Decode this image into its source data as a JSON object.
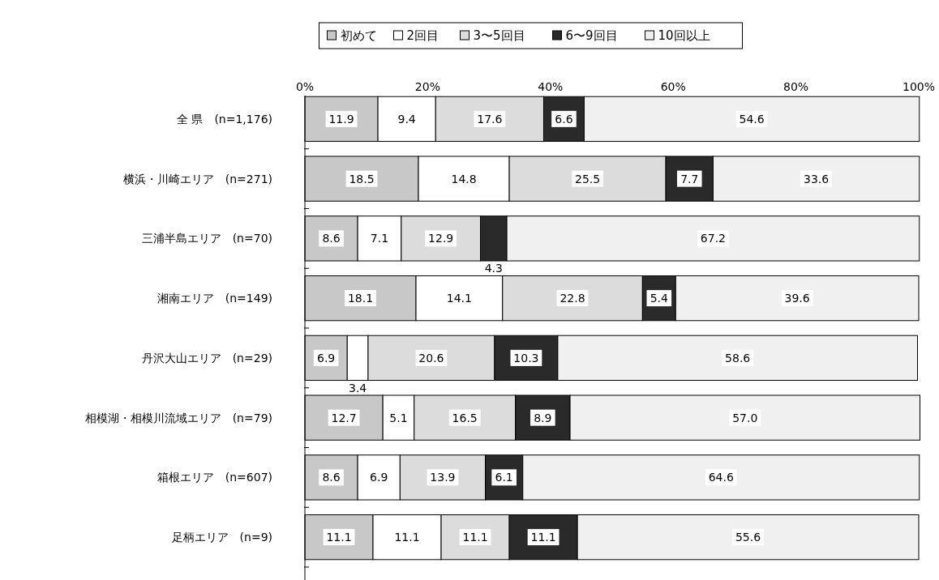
{
  "chart_data": {
    "type": "bar",
    "orientation": "horizontal",
    "stacked": true,
    "legend": "top",
    "categories": [
      "全 県　(n=1,176)",
      "横浜・川崎エリア　(n=271)",
      "三浦半島エリア　(n=70)",
      "湘南エリア　(n=149)",
      "丹沢大山エリア　(n=29)",
      "相模湖・相模川流域エリア　(n=79)",
      "箱根エリア　(n=607)",
      "足柄エリア　(n=9)"
    ],
    "xlim": [
      0,
      100
    ],
    "xticks": [
      {
        "value": 0,
        "label": "0%"
      },
      {
        "value": 20,
        "label": "20%"
      },
      {
        "value": 40,
        "label": "40%"
      },
      {
        "value": 60,
        "label": "60%"
      },
      {
        "value": 80,
        "label": "80%"
      },
      {
        "value": 100,
        "label": "100%"
      }
    ],
    "series": [
      {
        "name": "初めて",
        "color": "#c8c8c8",
        "values": [
          11.9,
          18.5,
          8.6,
          18.1,
          6.9,
          12.7,
          8.6,
          11.1
        ],
        "value_labels": [
          "11.9",
          "18.5",
          "8.6",
          "18.1",
          "6.9",
          "12.7",
          "8.6",
          "11.1"
        ]
      },
      {
        "name": "2回目",
        "color": "#ffffff",
        "values": [
          9.4,
          14.8,
          7.1,
          14.1,
          3.4,
          5.1,
          6.9,
          11.1
        ],
        "value_labels": [
          "9.4",
          "14.8",
          "7.1",
          "14.1",
          "3.4",
          "5.1",
          "6.9",
          "11.1"
        ]
      },
      {
        "name": "3〜5回目",
        "color": "#dcdcdc",
        "values": [
          17.6,
          25.5,
          12.9,
          22.8,
          20.6,
          16.5,
          13.9,
          11.1
        ],
        "value_labels": [
          "17.6",
          "25.5",
          "12.9",
          "22.8",
          "20.6",
          "16.5",
          "13.9",
          "11.1"
        ]
      },
      {
        "name": "6〜9回目",
        "color": "#2a2a2a",
        "values": [
          6.6,
          7.7,
          4.3,
          5.4,
          10.3,
          8.9,
          6.1,
          11.1
        ],
        "value_labels": [
          "6.6",
          "7.7",
          "4.3",
          "5.4",
          "10.3",
          "8.9",
          "6.1",
          "11.1"
        ]
      },
      {
        "name": "10回以上",
        "color": "#f0f0f0",
        "values": [
          54.6,
          33.6,
          67.2,
          39.6,
          58.6,
          57.0,
          64.6,
          55.6
        ],
        "value_labels": [
          "54.6",
          "33.6",
          "67.2",
          "39.6",
          "58.6",
          "57.0",
          "64.6",
          "55.6"
        ]
      }
    ]
  }
}
